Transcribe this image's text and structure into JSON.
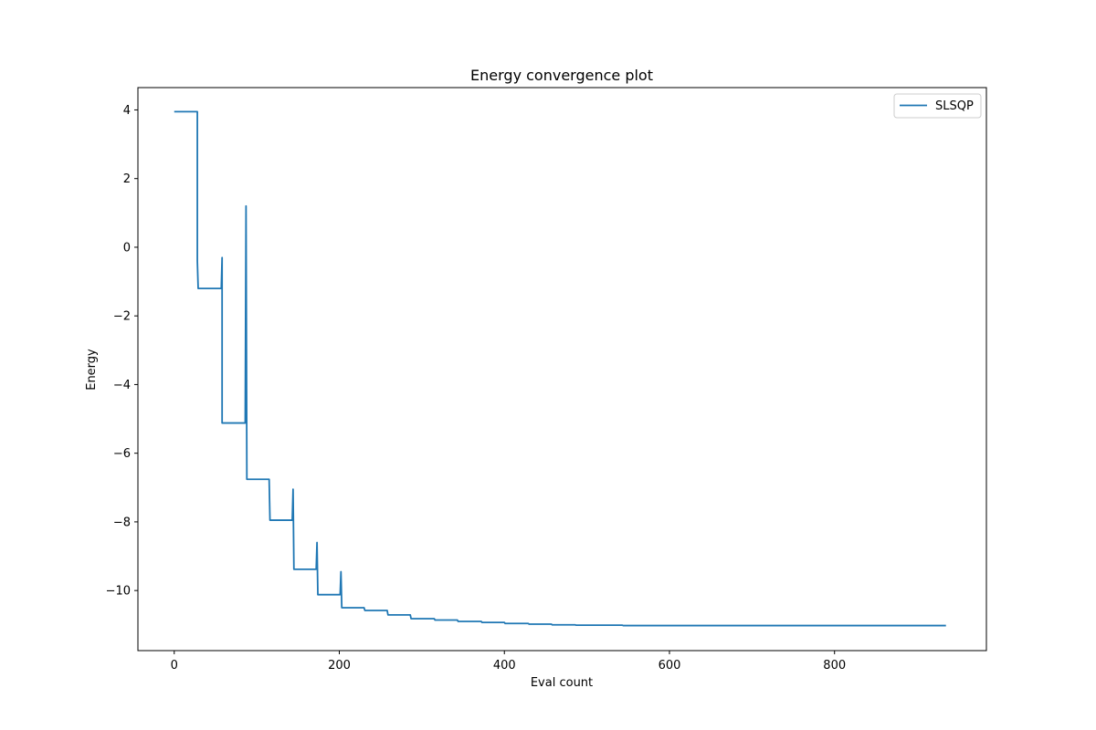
{
  "chart_data": {
    "type": "line",
    "title": "Energy convergence plot",
    "xlabel": "Eval count",
    "ylabel": "Energy",
    "xlim": [
      -44,
      984
    ],
    "ylim": [
      -11.75,
      4.65
    ],
    "xticks": [
      0,
      200,
      400,
      600,
      800
    ],
    "yticks": [
      4,
      2,
      0,
      -2,
      -4,
      -6,
      -8,
      -10
    ],
    "grid": false,
    "legend_position": "top-right",
    "series": [
      {
        "name": "SLSQP",
        "color": "#1f77b4",
        "points": [
          [
            0,
            3.95
          ],
          [
            28,
            3.95
          ],
          [
            28,
            -0.4
          ],
          [
            29,
            -1.2
          ],
          [
            57,
            -1.2
          ],
          [
            58,
            -0.3
          ],
          [
            58,
            -5.12
          ],
          [
            86,
            -5.12
          ],
          [
            87,
            1.2
          ],
          [
            88,
            -6.76
          ],
          [
            115,
            -6.76
          ],
          [
            116,
            -7.95
          ],
          [
            143,
            -7.95
          ],
          [
            144,
            -7.05
          ],
          [
            145,
            -9.38
          ],
          [
            172,
            -9.38
          ],
          [
            173,
            -8.6
          ],
          [
            174,
            -10.12
          ],
          [
            201,
            -10.12
          ],
          [
            202,
            -9.45
          ],
          [
            203,
            -10.5
          ],
          [
            230,
            -10.5
          ],
          [
            231,
            -10.58
          ],
          [
            258,
            -10.58
          ],
          [
            259,
            -10.71
          ],
          [
            286,
            -10.71
          ],
          [
            287,
            -10.82
          ],
          [
            315,
            -10.82
          ],
          [
            316,
            -10.86
          ],
          [
            343,
            -10.86
          ],
          [
            344,
            -10.9
          ],
          [
            372,
            -10.9
          ],
          [
            373,
            -10.93
          ],
          [
            400,
            -10.93
          ],
          [
            401,
            -10.96
          ],
          [
            429,
            -10.96
          ],
          [
            430,
            -10.98
          ],
          [
            457,
            -10.98
          ],
          [
            458,
            -11.0
          ],
          [
            486,
            -11.0
          ],
          [
            487,
            -11.01
          ],
          [
            543,
            -11.01
          ],
          [
            544,
            -11.02
          ],
          [
            935,
            -11.02
          ]
        ]
      }
    ]
  }
}
